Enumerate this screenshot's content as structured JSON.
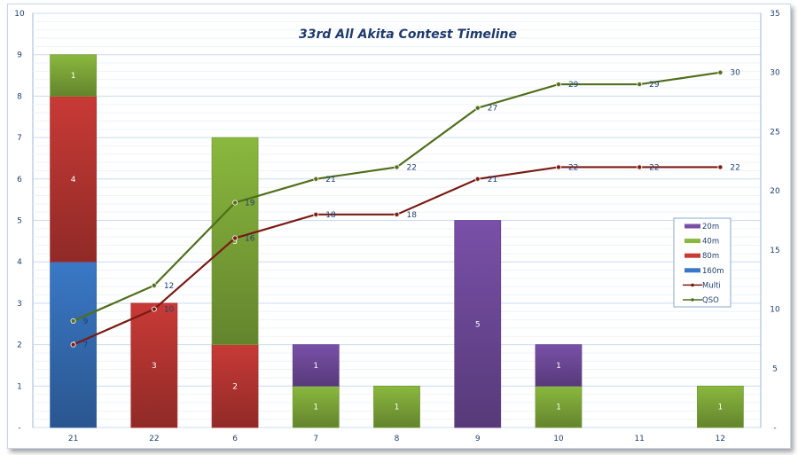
{
  "chart_data": {
    "type": "bar",
    "title": "33rd All Akita Contest Timeline",
    "categories": [
      "21",
      "22",
      "6",
      "7",
      "8",
      "9",
      "10",
      "11",
      "12"
    ],
    "stacked": true,
    "y_left": {
      "ylim": [
        0,
        10
      ],
      "ticks": [
        "-",
        "1",
        "2",
        "3",
        "4",
        "5",
        "6",
        "7",
        "8",
        "9",
        "10"
      ]
    },
    "y_right": {
      "ylim": [
        0,
        35
      ],
      "ticks": [
        "-",
        "5",
        "10",
        "15",
        "20",
        "25",
        "30",
        "35"
      ]
    },
    "grid": true,
    "legend_position": "right",
    "series": [
      {
        "name": "160m",
        "kind": "bar",
        "axis": "left",
        "color": "#3a78c6",
        "values": [
          4,
          0,
          0,
          0,
          0,
          0,
          0,
          0,
          0
        ]
      },
      {
        "name": "80m",
        "kind": "bar",
        "axis": "left",
        "color": "#c83a36",
        "values": [
          4,
          3,
          2,
          0,
          0,
          0,
          0,
          0,
          0
        ]
      },
      {
        "name": "40m",
        "kind": "bar",
        "axis": "left",
        "color": "#8ab83e",
        "values": [
          1,
          0,
          5,
          1,
          1,
          0,
          1,
          0,
          1
        ]
      },
      {
        "name": "20m",
        "kind": "bar",
        "axis": "left",
        "color": "#7950a8",
        "values": [
          0,
          0,
          0,
          1,
          0,
          5,
          1,
          0,
          0
        ]
      },
      {
        "name": "Multi",
        "kind": "line",
        "axis": "right",
        "color": "#7a1a14",
        "values": [
          7,
          10,
          16,
          18,
          18,
          21,
          22,
          22,
          22
        ]
      },
      {
        "name": "QSO",
        "kind": "line",
        "axis": "right",
        "color": "#4f6f1a",
        "values": [
          9,
          12,
          19,
          21,
          22,
          27,
          29,
          29,
          30
        ]
      }
    ],
    "legend_order": [
      "20m",
      "40m",
      "80m",
      "160m",
      "Multi",
      "QSO"
    ]
  }
}
